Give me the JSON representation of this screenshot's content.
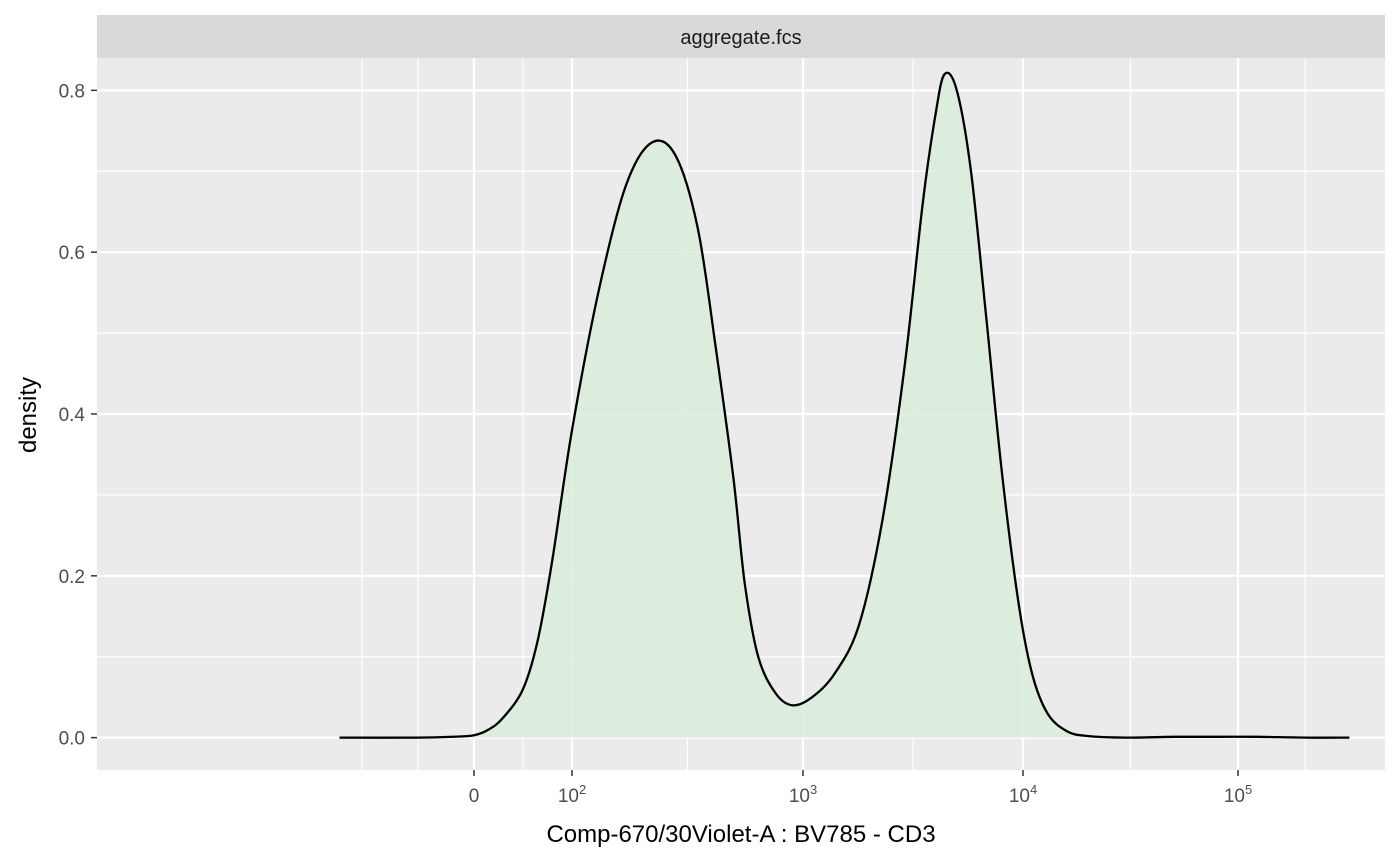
{
  "chart_data": {
    "type": "area",
    "panel_title": "aggregate.fcs",
    "xlabel": "Comp-670/30Violet-A : BV785 - CD3",
    "ylabel": "density",
    "x_scale": "biexponential (flowjo-style)",
    "ylim": [
      -0.04,
      0.84
    ],
    "y_ticks": [
      {
        "value": 0.0,
        "label": "0.0"
      },
      {
        "value": 0.2,
        "label": "0.2"
      },
      {
        "value": 0.4,
        "label": "0.4"
      },
      {
        "value": 0.6,
        "label": "0.6"
      },
      {
        "value": 0.8,
        "label": "0.8"
      }
    ],
    "x_ticks": [
      {
        "value": 0,
        "base": "0",
        "exp": ""
      },
      {
        "value": 100,
        "base": "10",
        "exp": "2"
      },
      {
        "value": 1000,
        "base": "10",
        "exp": "3"
      },
      {
        "value": 10000,
        "base": "10",
        "exp": "4"
      },
      {
        "value": 100000,
        "base": "10",
        "exp": "5"
      }
    ],
    "grid": true,
    "fill_color": "#d9edda",
    "line_color": "#000000",
    "panel_bg": "#ebebeb",
    "strip_bg": "#d9d9d9",
    "series": [
      {
        "x": [
          -60,
          -25,
          -10,
          0,
          15,
          30,
          50,
          65,
          80,
          100,
          130,
          170,
          220,
          280,
          350,
          420,
          500,
          560,
          640,
          760,
          900,
          1100,
          1400,
          1800,
          2300,
          2900,
          3500,
          4000,
          4400,
          5000,
          5800,
          6800,
          8000,
          9500,
          11000,
          13000,
          16000,
          20000,
          30000,
          50000,
          80000,
          120000,
          180000,
          260000
        ],
        "y": [
          0.0,
          0.0,
          0.001,
          0.003,
          0.01,
          0.025,
          0.06,
          0.12,
          0.22,
          0.38,
          0.55,
          0.68,
          0.735,
          0.72,
          0.63,
          0.48,
          0.32,
          0.19,
          0.1,
          0.055,
          0.04,
          0.05,
          0.08,
          0.14,
          0.27,
          0.46,
          0.66,
          0.77,
          0.82,
          0.8,
          0.7,
          0.52,
          0.33,
          0.17,
          0.08,
          0.03,
          0.008,
          0.002,
          0.0,
          0.001,
          0.001,
          0.001,
          0.0,
          0.0
        ]
      }
    ]
  }
}
